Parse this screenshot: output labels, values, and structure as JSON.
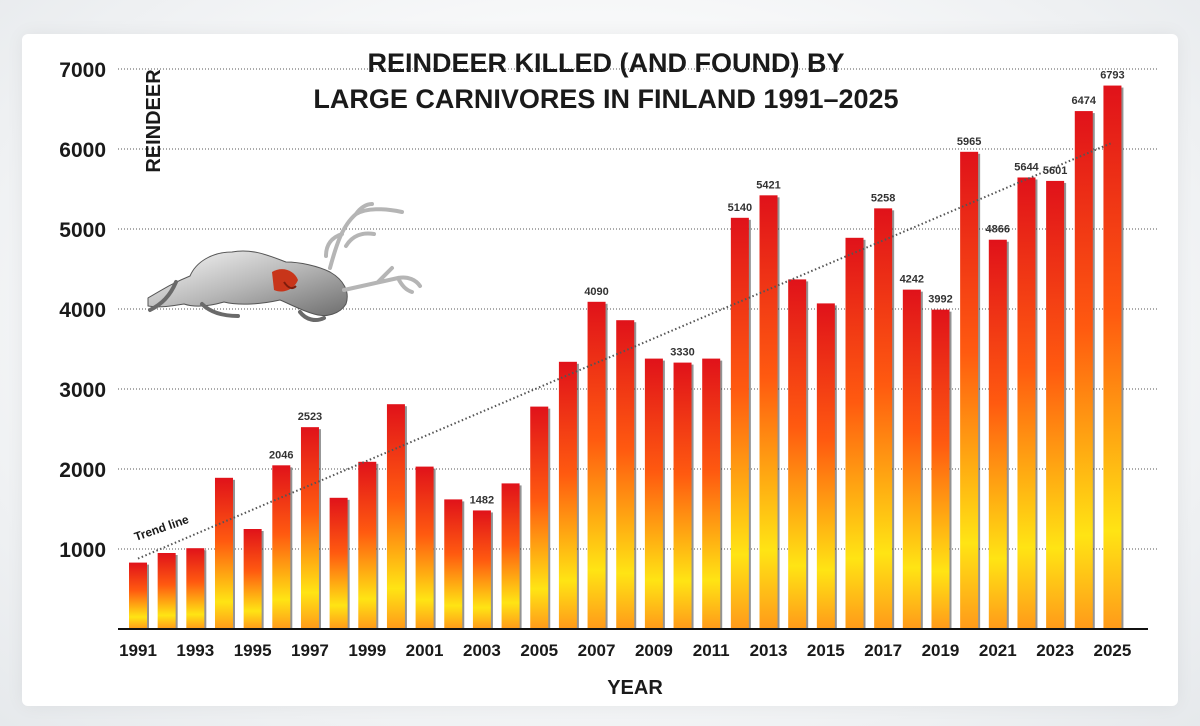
{
  "chart_data": {
    "type": "bar",
    "title_lines": [
      "REINDEER KILLED (AND FOUND) BY",
      "LARGE CARNIVORES IN FINLAND 1991–2025"
    ],
    "xlabel": "YEAR",
    "ylabel": "REINDEER",
    "ylim": [
      0,
      7000
    ],
    "yticks": [
      1000,
      2000,
      3000,
      4000,
      5000,
      6000,
      7000
    ],
    "xtick_labels": [
      "1991",
      "1993",
      "1995",
      "1997",
      "1999",
      "2001",
      "2003",
      "2005",
      "2007",
      "2009",
      "2011",
      "2013",
      "2015",
      "2017",
      "2019",
      "2021",
      "2023",
      "2025"
    ],
    "categories": [
      1991,
      1992,
      1993,
      1994,
      1995,
      1996,
      1997,
      1998,
      1999,
      2000,
      2001,
      2002,
      2003,
      2004,
      2005,
      2006,
      2007,
      2008,
      2009,
      2010,
      2011,
      2012,
      2013,
      2014,
      2015,
      2016,
      2017,
      2018,
      2019,
      2020,
      2021,
      2022,
      2023,
      2024,
      2025
    ],
    "values": [
      830,
      950,
      1010,
      1890,
      1250,
      2046,
      2523,
      1640,
      2090,
      2810,
      2030,
      1620,
      1482,
      1820,
      2780,
      3340,
      4090,
      3860,
      3380,
      3330,
      3380,
      5140,
      5421,
      4370,
      4070,
      4890,
      5258,
      4242,
      3992,
      5965,
      4866,
      5644,
      5601,
      6474,
      6793
    ],
    "data_labels": {
      "1996": "2046",
      "1997": "2523",
      "2003": "1482",
      "2007": "4090",
      "2010": "3330",
      "2012": "5140",
      "2013": "5421",
      "2017": "5258",
      "2018": "4242",
      "2019": "3992",
      "2020": "5965",
      "2021": "4866",
      "2022": "5644",
      "2023": "5601",
      "2024": "6474",
      "2025": "6793"
    },
    "trend_label": "Trend line",
    "trend_line": {
      "start": [
        1991,
        880
      ],
      "end": [
        2025,
        6080
      ]
    },
    "grid": "horizontal dotted",
    "colors": {
      "bar_top": "#e0121a",
      "bar_mid": "#ff7a10",
      "bar_low": "#ffe414",
      "bar_bottom": "#ff9a1a",
      "trend": "#555555"
    },
    "decoration": "reindeer-illustration"
  }
}
